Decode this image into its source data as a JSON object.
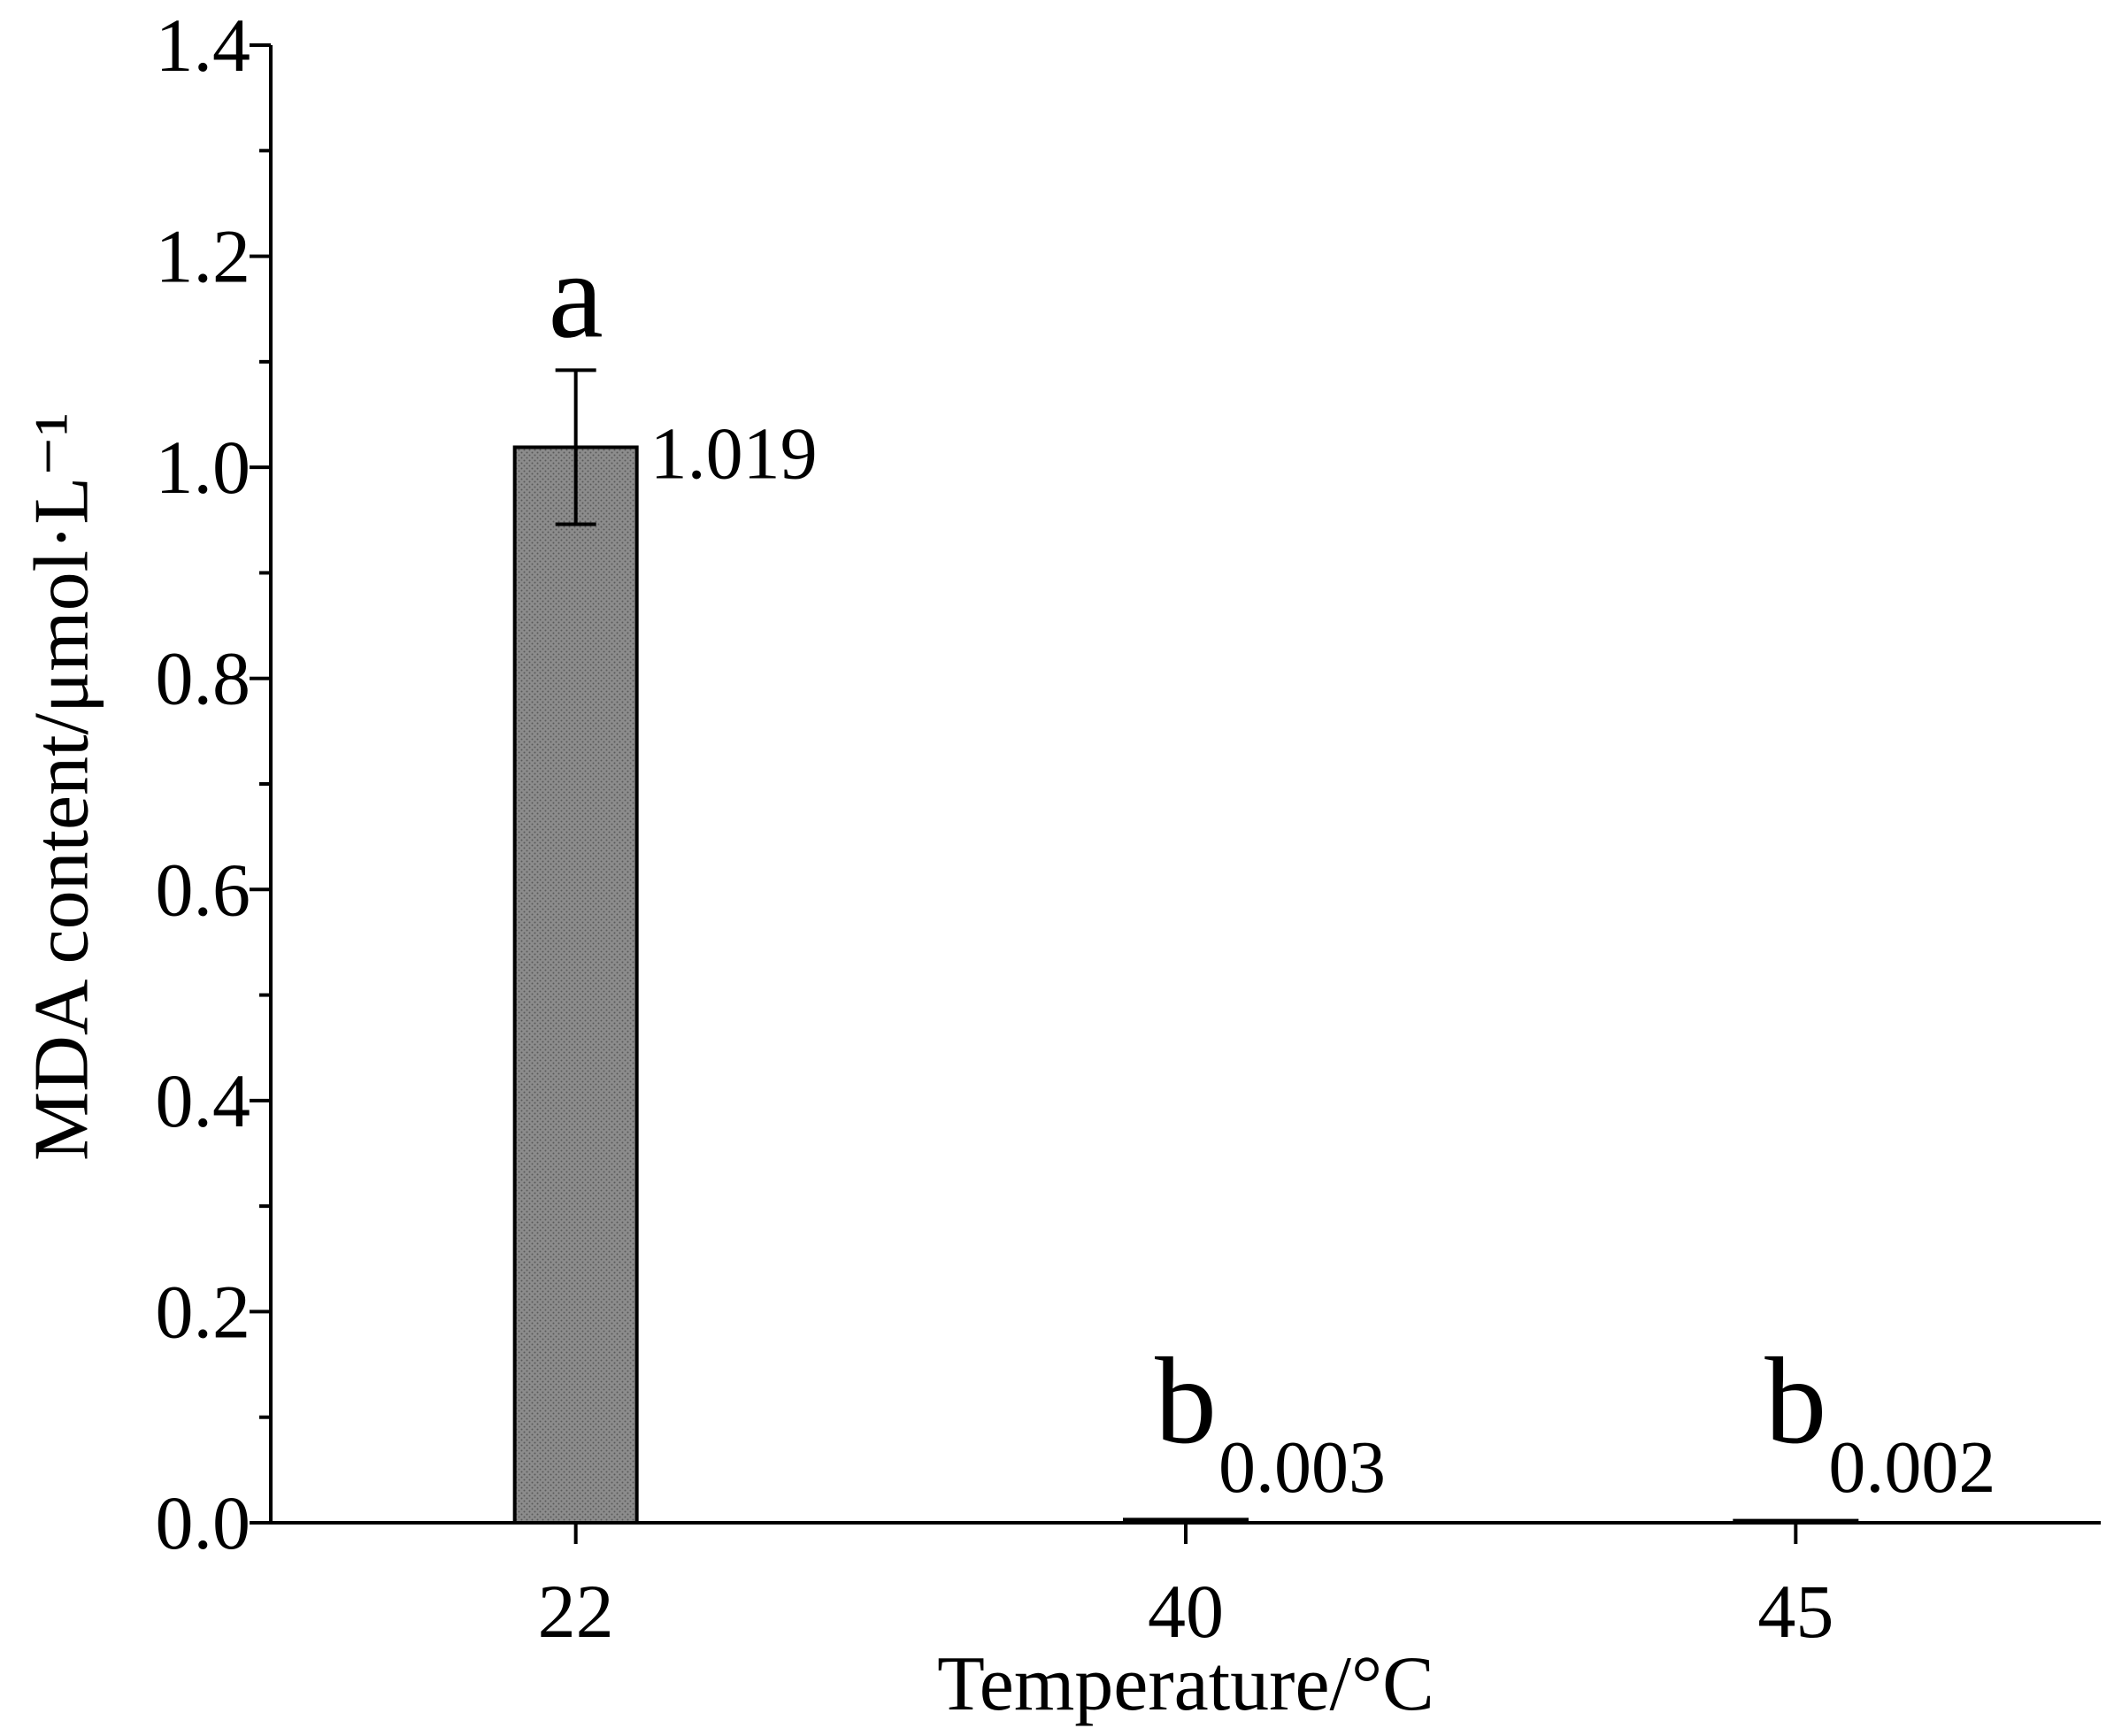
{
  "chart_data": {
    "type": "bar",
    "categories": [
      "22",
      "40",
      "45"
    ],
    "values": [
      1.019,
      0.003,
      0.002
    ],
    "error": [
      0.073,
      null,
      null
    ],
    "value_labels": [
      "1.019",
      "0.003",
      "0.002"
    ],
    "significance_letters": [
      "a",
      "b",
      "b"
    ],
    "xlabel": "Temperature/°C",
    "ylabel": "MDA content/μmol·L⁻¹",
    "ylim": [
      0,
      1.4
    ],
    "yticks": [
      0,
      0.2,
      0.4,
      0.6,
      0.8,
      1.0,
      1.2,
      1.4
    ],
    "ytick_labels": [
      "0.0",
      "0.2",
      "0.4",
      "0.6",
      "0.8",
      "1.0",
      "1.2",
      "1.4"
    ],
    "grid": false,
    "legend": false,
    "colors": {
      "bar": "#8c8c8c",
      "bar_dots": "#5a5a5a",
      "axis": "#000000"
    }
  }
}
